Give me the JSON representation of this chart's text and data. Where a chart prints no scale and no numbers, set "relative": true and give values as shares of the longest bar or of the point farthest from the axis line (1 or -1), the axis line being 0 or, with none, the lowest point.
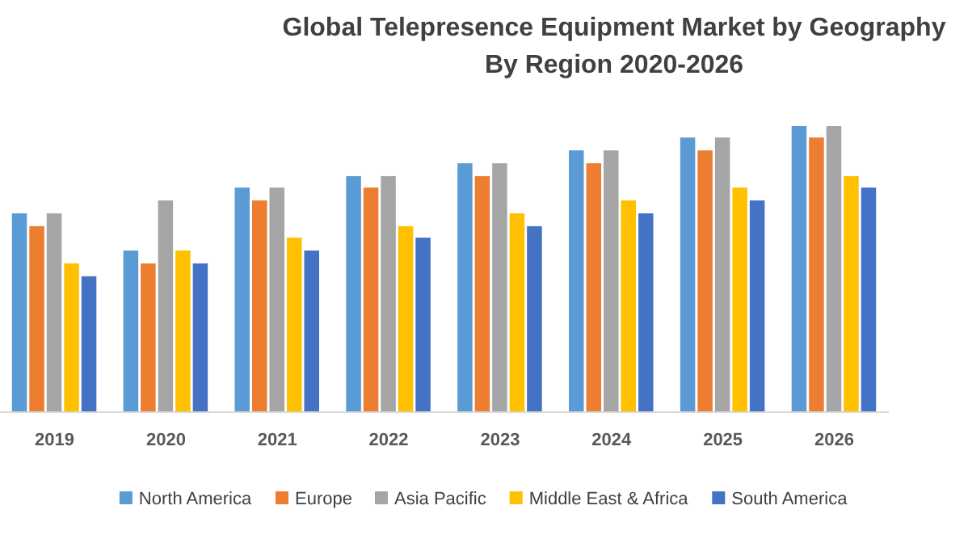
{
  "chart_data": {
    "type": "bar",
    "title": "Global Telepresence Equipment Market by Geography",
    "subtitle": "By Region 2020-2026",
    "relative": true,
    "categories": [
      "2019",
      "2020",
      "2021",
      "2022",
      "2023",
      "2024",
      "2025",
      "2026"
    ],
    "legend": "bottom",
    "series": [
      {
        "name": "North America",
        "color": "#5b9bd5",
        "values": [
          0.695,
          0.565,
          0.785,
          0.825,
          0.87,
          0.915,
          0.96,
          1
        ]
      },
      {
        "name": "Europe",
        "color": "#ed7d31",
        "values": [
          0.65,
          0.52,
          0.74,
          0.785,
          0.825,
          0.87,
          0.915,
          0.96
        ]
      },
      {
        "name": "Asia Pacific",
        "color": "#a5a5a5",
        "values": [
          0.695,
          0.74,
          0.785,
          0.825,
          0.87,
          0.915,
          0.96,
          1
        ]
      },
      {
        "name": "Middle East & Africa",
        "color": "#ffc000",
        "values": [
          0.52,
          0.565,
          0.61,
          0.65,
          0.695,
          0.74,
          0.785,
          0.825
        ]
      },
      {
        "name": "South America",
        "color": "#4472c4",
        "values": [
          0.475,
          0.52,
          0.565,
          0.61,
          0.65,
          0.695,
          0.74,
          0.785
        ]
      }
    ]
  }
}
